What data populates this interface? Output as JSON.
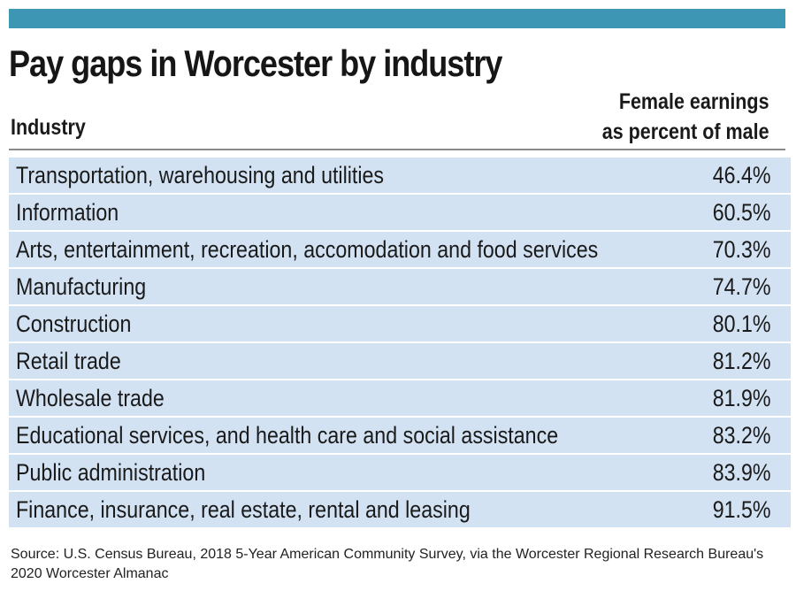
{
  "colors": {
    "top_bar": "#3d96b4",
    "row_background": "#d2e2f3",
    "rule": "#8a8a8a"
  },
  "chart_data": {
    "type": "table",
    "title": "Pay gaps in Worcester by industry",
    "columns": [
      "Industry",
      "Female earnings as percent of male"
    ],
    "header_value_lines": [
      "Female earnings",
      "as percent of male"
    ],
    "rows": [
      {
        "industry": "Transportation, warehousing and utilities",
        "value": 46.4,
        "display": "46.4%"
      },
      {
        "industry": "Information",
        "value": 60.5,
        "display": "60.5%"
      },
      {
        "industry": "Arts, entertainment, recreation, accomodation and food services",
        "value": 70.3,
        "display": "70.3%"
      },
      {
        "industry": "Manufacturing",
        "value": 74.7,
        "display": "74.7%"
      },
      {
        "industry": "Construction",
        "value": 80.1,
        "display": "80.1%"
      },
      {
        "industry": "Retail trade",
        "value": 81.2,
        "display": "81.2%"
      },
      {
        "industry": "Wholesale trade",
        "value": 81.9,
        "display": "81.9%"
      },
      {
        "industry": "Educational services, and health care and social assistance",
        "value": 83.2,
        "display": "83.2%"
      },
      {
        "industry": "Public administration",
        "value": 83.9,
        "display": "83.9%"
      },
      {
        "industry": "Finance, insurance, real estate, rental and leasing",
        "value": 91.5,
        "display": "91.5%"
      }
    ],
    "source": "Source: U.S. Census Bureau, 2018 5-Year American Community Survey, via the Worcester Regional Research Bureau's 2020 Worcester Almanac"
  }
}
